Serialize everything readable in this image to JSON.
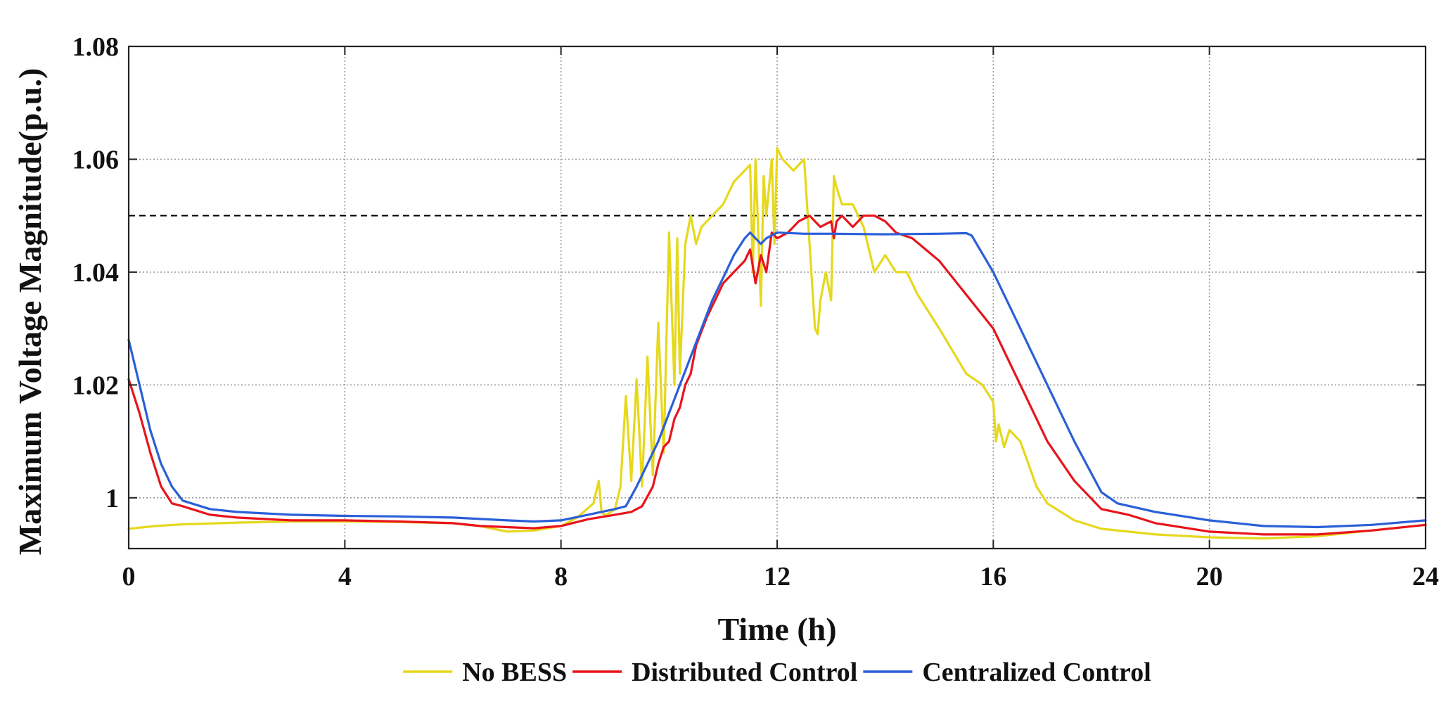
{
  "chart_data": {
    "type": "line",
    "title": "",
    "xlabel": "Time (h)",
    "ylabel": "Maximum Voltage Magnitude(p.u.)",
    "xlim": [
      0,
      24
    ],
    "ylim": [
      0.991,
      1.08
    ],
    "xticks": [
      0,
      4,
      8,
      12,
      16,
      20,
      24
    ],
    "xtick_labels": [
      "0",
      "4",
      "8",
      "12",
      "16",
      "20",
      "24"
    ],
    "yticks": [
      1.0,
      1.02,
      1.04,
      1.06,
      1.08
    ],
    "ytick_labels": [
      "1",
      "1.02",
      "1.04",
      "1.06",
      "1.08"
    ],
    "grid": true,
    "legend_position": "bottom-center",
    "reference_line": {
      "y": 1.05,
      "style": "dashed",
      "color": "#000000"
    },
    "series": [
      {
        "name": "No BESS",
        "color": "#e6d81c",
        "x": [
          0,
          0.5,
          1,
          2,
          3,
          4,
          5,
          6,
          6.5,
          7,
          7.5,
          8,
          8.3,
          8.6,
          8.7,
          8.75,
          8.8,
          8.85,
          9,
          9.1,
          9.2,
          9.3,
          9.4,
          9.5,
          9.6,
          9.7,
          9.8,
          9.9,
          10,
          10.1,
          10.15,
          10.2,
          10.3,
          10.4,
          10.5,
          10.6,
          10.8,
          11,
          11.2,
          11.4,
          11.5,
          11.55,
          11.6,
          11.7,
          11.75,
          11.8,
          11.9,
          11.95,
          12,
          12.1,
          12.3,
          12.5,
          12.7,
          12.75,
          12.8,
          12.9,
          13,
          13.05,
          13.1,
          13.2,
          13.4,
          13.6,
          13.8,
          14,
          14.2,
          14.4,
          14.6,
          15,
          15.5,
          15.8,
          16,
          16.05,
          16.1,
          16.2,
          16.3,
          16.5,
          16.8,
          17,
          17.5,
          18,
          19,
          20,
          21,
          22,
          23,
          24
        ],
        "y": [
          0.9945,
          0.995,
          0.9953,
          0.9956,
          0.9958,
          0.9958,
          0.9957,
          0.9955,
          0.995,
          0.994,
          0.9942,
          0.995,
          0.9965,
          0.999,
          1.003,
          0.9975,
          0.997,
          0.997,
          0.998,
          1.002,
          1.018,
          1.003,
          1.021,
          1.002,
          1.025,
          1.004,
          1.031,
          1.008,
          1.047,
          1.02,
          1.046,
          1.022,
          1.045,
          1.05,
          1.045,
          1.048,
          1.05,
          1.052,
          1.056,
          1.058,
          1.059,
          1.04,
          1.06,
          1.034,
          1.057,
          1.05,
          1.06,
          1.045,
          1.062,
          1.06,
          1.058,
          1.06,
          1.03,
          1.029,
          1.035,
          1.04,
          1.035,
          1.057,
          1.055,
          1.052,
          1.052,
          1.048,
          1.04,
          1.043,
          1.04,
          1.04,
          1.036,
          1.03,
          1.022,
          1.02,
          1.017,
          1.01,
          1.013,
          1.009,
          1.012,
          1.01,
          1.002,
          0.999,
          0.996,
          0.9945,
          0.9935,
          0.993,
          0.9928,
          0.9932,
          0.9942,
          0.9952
        ]
      },
      {
        "name": "Distributed Control",
        "color": "#e8141c",
        "x": [
          0,
          0.2,
          0.4,
          0.6,
          0.8,
          1,
          1.5,
          2,
          3,
          4,
          5,
          6,
          6.5,
          7,
          7.5,
          8,
          8.5,
          9,
          9.3,
          9.5,
          9.7,
          9.8,
          9.9,
          10,
          10.1,
          10.2,
          10.3,
          10.4,
          10.5,
          10.7,
          10.9,
          11,
          11.2,
          11.4,
          11.5,
          11.6,
          11.7,
          11.8,
          11.9,
          12,
          12.2,
          12.4,
          12.6,
          12.8,
          13,
          13.05,
          13.1,
          13.2,
          13.4,
          13.6,
          13.8,
          14,
          14.2,
          14.5,
          15,
          15.5,
          16,
          16.5,
          17,
          17.5,
          18,
          18.5,
          19,
          20,
          21,
          22,
          23,
          24
        ],
        "y": [
          1.021,
          1.015,
          1.008,
          1.002,
          0.999,
          0.9985,
          0.997,
          0.9965,
          0.996,
          0.996,
          0.9958,
          0.9955,
          0.995,
          0.9948,
          0.9946,
          0.995,
          0.9962,
          0.997,
          0.9975,
          0.9985,
          1.002,
          1.006,
          1.009,
          1.01,
          1.014,
          1.016,
          1.02,
          1.022,
          1.027,
          1.032,
          1.036,
          1.038,
          1.04,
          1.042,
          1.044,
          1.038,
          1.043,
          1.04,
          1.047,
          1.046,
          1.047,
          1.049,
          1.05,
          1.048,
          1.049,
          1.046,
          1.049,
          1.05,
          1.048,
          1.05,
          1.05,
          1.049,
          1.047,
          1.046,
          1.042,
          1.036,
          1.03,
          1.02,
          1.01,
          1.003,
          0.998,
          0.997,
          0.9955,
          0.994,
          0.9935,
          0.9935,
          0.9942,
          0.9952
        ]
      },
      {
        "name": "Centralized Control",
        "color": "#2a5fd8",
        "x": [
          0,
          0.2,
          0.4,
          0.6,
          0.8,
          1,
          1.5,
          2,
          3,
          4,
          5,
          6,
          7,
          7.5,
          8,
          8.5,
          9,
          9.2,
          9.4,
          9.6,
          9.8,
          10,
          10.2,
          10.4,
          10.6,
          10.8,
          11,
          11.2,
          11.4,
          11.5,
          11.6,
          11.7,
          11.8,
          12,
          12.5,
          13,
          14,
          15,
          15.5,
          15.6,
          16,
          16.5,
          17,
          17.5,
          18,
          18.3,
          19,
          20,
          21,
          22,
          23,
          24
        ],
        "y": [
          1.028,
          1.02,
          1.012,
          1.006,
          1.002,
          0.9995,
          0.998,
          0.9975,
          0.997,
          0.9968,
          0.9967,
          0.9965,
          0.996,
          0.9958,
          0.996,
          0.997,
          0.998,
          0.9985,
          1.002,
          1.006,
          1.01,
          1.015,
          1.02,
          1.025,
          1.03,
          1.035,
          1.039,
          1.043,
          1.046,
          1.047,
          1.046,
          1.045,
          1.046,
          1.047,
          1.0468,
          1.0468,
          1.0467,
          1.0468,
          1.0469,
          1.0465,
          1.04,
          1.03,
          1.02,
          1.01,
          1.001,
          0.999,
          0.9975,
          0.996,
          0.995,
          0.9948,
          0.9952,
          0.996
        ]
      }
    ]
  }
}
